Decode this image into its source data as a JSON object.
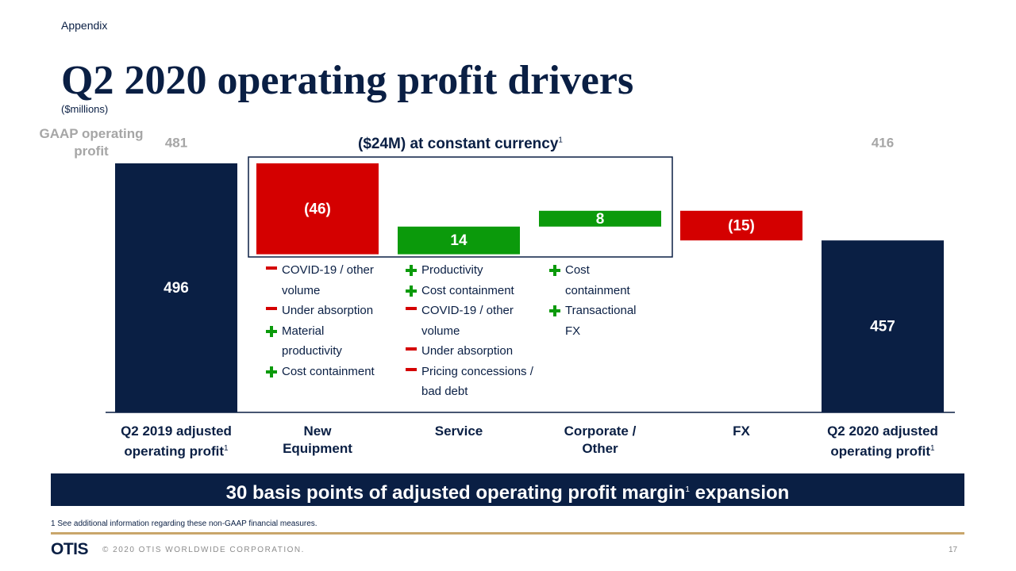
{
  "header": {
    "section": "Appendix",
    "title": "Q2 2020 operating profit drivers",
    "subtitle": "($millions)"
  },
  "chart_data": {
    "type": "waterfall",
    "categories": [
      "Q2 2019 adjusted operating profit",
      "New Equipment",
      "Service",
      "Corporate / Other",
      "FX",
      "Q2 2020 adjusted operating profit"
    ],
    "category_notes": [
      "1",
      null,
      null,
      null,
      null,
      "1"
    ],
    "values": [
      496,
      -46,
      14,
      8,
      -15,
      457
    ],
    "value_labels": [
      "496",
      "(46)",
      "14",
      "8",
      "(15)",
      "457"
    ],
    "colors": {
      "total": "#0a1f44",
      "increase": "#0b9a0b",
      "decrease": "#d40000"
    },
    "ylim": [
      370,
      500
    ],
    "gaap_label": "GAAP operating profit",
    "gaap_values": [
      481,
      null,
      null,
      null,
      null,
      416
    ],
    "annotation": "($24M) at constant currency",
    "annotation_note": "1",
    "drivers": [
      [],
      [
        {
          "sign": "-",
          "text": "COVID-19 / other volume"
        },
        {
          "sign": "-",
          "text": "Under absorption"
        },
        {
          "sign": "+",
          "text": "Material productivity"
        },
        {
          "sign": "+",
          "text": "Cost containment"
        }
      ],
      [
        {
          "sign": "+",
          "text": "Productivity"
        },
        {
          "sign": "+",
          "text": "Cost containment"
        },
        {
          "sign": "-",
          "text": "COVID-19 / other volume"
        },
        {
          "sign": "-",
          "text": "Under absorption"
        },
        {
          "sign": "-",
          "text": "Pricing concessions / bad debt"
        }
      ],
      [
        {
          "sign": "+",
          "text": "Cost containment"
        },
        {
          "sign": "+",
          "text": "Transactional FX"
        }
      ],
      [],
      []
    ]
  },
  "banner": {
    "text": "30 basis points of adjusted operating profit margin",
    "note": "1",
    "text_after": " expansion"
  },
  "footnote": "1 See additional information regarding these non-GAAP financial measures.",
  "footer": {
    "logo": "OTIS",
    "copyright": "© 2020 OTIS WORLDWIDE CORPORATION.",
    "page": "17"
  }
}
